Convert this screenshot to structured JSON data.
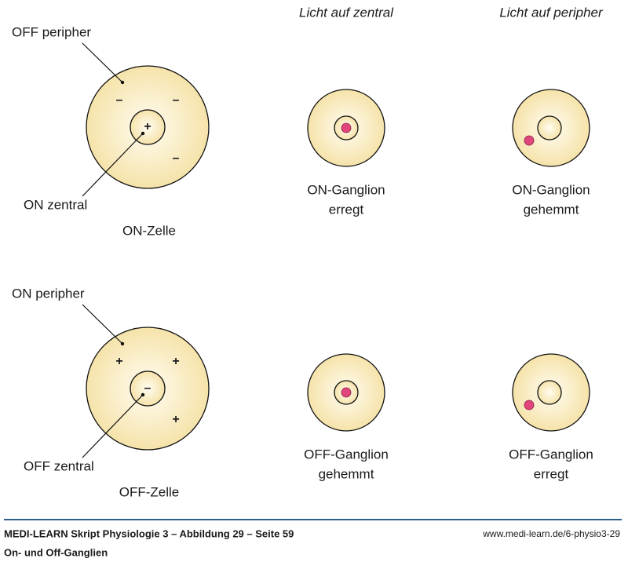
{
  "columns": [
    "Licht auf zentral",
    "Licht auf peripher"
  ],
  "rows": [
    {
      "cell": "ON-Zelle",
      "surround_label": "OFF peripher",
      "center_label": "ON zentral",
      "surround_sign": "–",
      "center_sign": "+",
      "results": [
        [
          "ON-Ganglion",
          "erregt"
        ],
        [
          "ON-Ganglion",
          "gehemmt"
        ]
      ]
    },
    {
      "cell": "OFF-Zelle",
      "surround_label": "ON peripher",
      "center_label": "OFF zentral",
      "surround_sign": "+",
      "center_sign": "–",
      "results": [
        [
          "OFF-Ganglion",
          "gehemmt"
        ],
        [
          "OFF-Ganglion",
          "erregt"
        ]
      ]
    }
  ],
  "footer": {
    "title": "MEDI-LEARN Skript Physiologie 3 – Abbildung 29 – Seite 59",
    "subtitle": "On- und Off-Ganglien",
    "url": "www.medi-learn.de/6-physio3-29"
  }
}
